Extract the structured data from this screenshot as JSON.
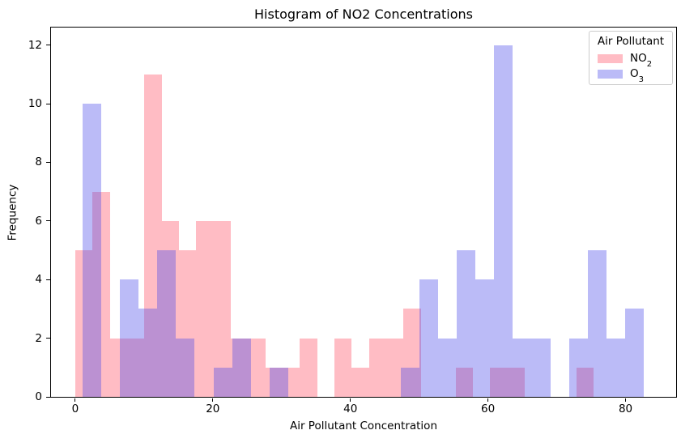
{
  "chart_data": {
    "type": "bar",
    "subtype": "overlapping-histograms",
    "title": "Histogram of NO2 Concentrations",
    "xlabel": "Air Pollutant Concentration",
    "ylabel": "Frequency",
    "xlim": [
      -3.52,
      87.35
    ],
    "ylim": [
      0,
      12.6
    ],
    "xticks": [
      0,
      20,
      40,
      60,
      80
    ],
    "yticks": [
      0,
      2,
      4,
      6,
      8,
      10,
      12
    ],
    "grid": false,
    "legend": {
      "title": "Air Pollutant",
      "position": "upper right",
      "entries": [
        {
          "text": "NO",
          "sub": "2",
          "swatch_color": "#ffbcc4"
        },
        {
          "text": "O",
          "sub": "3",
          "swatch_color": "#bbbbf7"
        }
      ]
    },
    "series": [
      {
        "name": "NO2",
        "fill": "rgba(255,80,100,0.38)",
        "bin_start": 0,
        "bin_width": 2.5125,
        "counts": [
          5,
          7,
          2,
          2,
          11,
          6,
          5,
          6,
          6,
          2,
          2,
          1,
          1,
          2,
          0,
          2,
          1,
          2,
          2,
          3,
          0,
          0,
          1,
          0,
          1,
          1,
          0,
          0,
          0,
          1
        ]
      },
      {
        "name": "O3",
        "fill": "rgba(76,76,234,0.38)",
        "bin_start": 1.05,
        "bin_width": 2.72,
        "counts": [
          10,
          0,
          4,
          3,
          5,
          2,
          0,
          1,
          2,
          0,
          1,
          0,
          0,
          0,
          0,
          0,
          0,
          1,
          4,
          2,
          5,
          4,
          12,
          2,
          2,
          0,
          2,
          5,
          2,
          3
        ]
      }
    ],
    "colors": {
      "no2_fill": "rgba(255,80,100,0.38)",
      "o3_fill": "rgba(76,76,234,0.38)",
      "overlap": "#bb92d2",
      "spine": "#000000",
      "legend_border": "#cccccc"
    }
  }
}
